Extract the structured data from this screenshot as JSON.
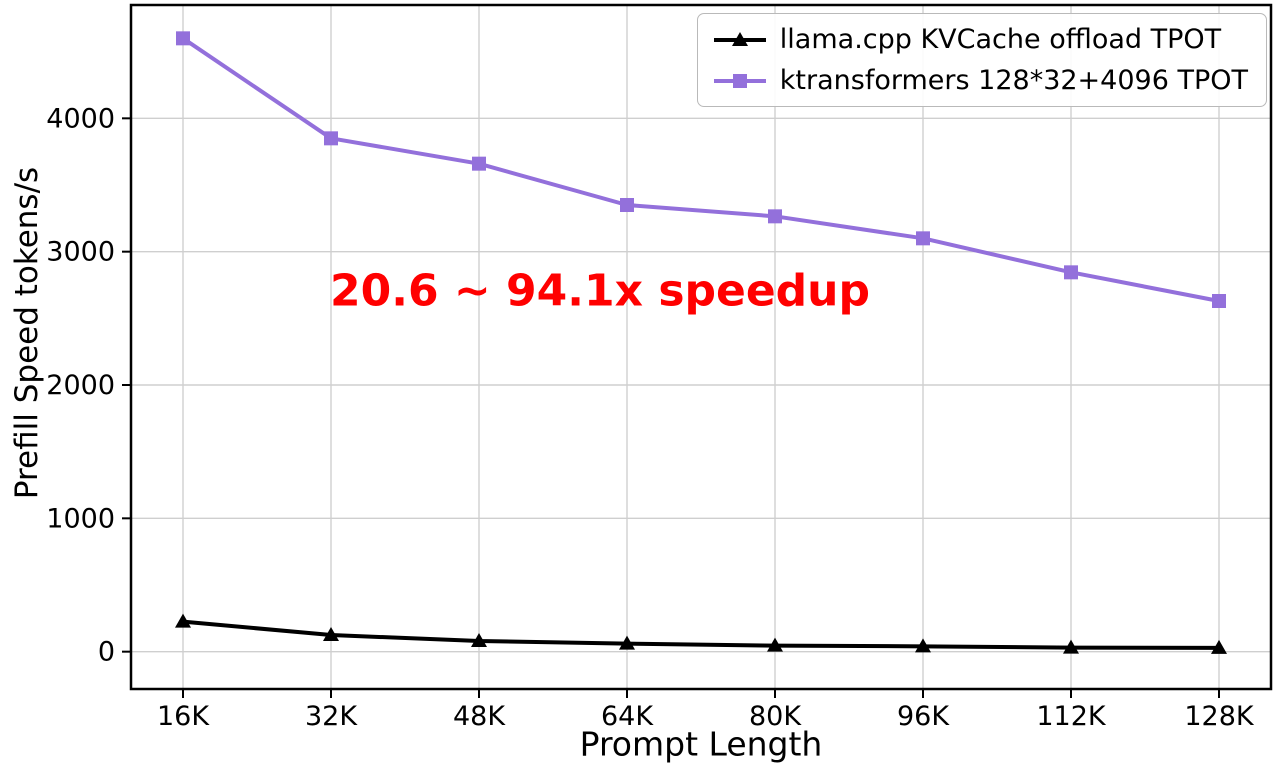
{
  "chart_data": {
    "type": "line",
    "title": "",
    "x_label": "Prompt Length",
    "y_label": "Prefill Speed tokens/s",
    "categories": [
      "16K",
      "32K",
      "48K",
      "64K",
      "80K",
      "96K",
      "112K",
      "128K"
    ],
    "y_ticks": [
      0,
      1000,
      2000,
      3000,
      4000
    ],
    "ylim": [
      -280,
      4850
    ],
    "grid": true,
    "grid_color": "#cfcfcf",
    "legend_position": "upper right",
    "series": [
      {
        "name": "llama.cpp KVCache offload TPOT",
        "color": "#000000",
        "marker": "triangle",
        "values": [
          225,
          125,
          80,
          60,
          45,
          40,
          30,
          28
        ]
      },
      {
        "name": "ktransformers 128*32+4096 TPOT",
        "color": "#9370db",
        "marker": "square",
        "values": [
          4600,
          3850,
          3660,
          3350,
          3265,
          3100,
          2845,
          2630
        ]
      }
    ],
    "annotation": {
      "text": "20.6 ~ 94.1x speedup",
      "color": "#ff0000"
    }
  }
}
